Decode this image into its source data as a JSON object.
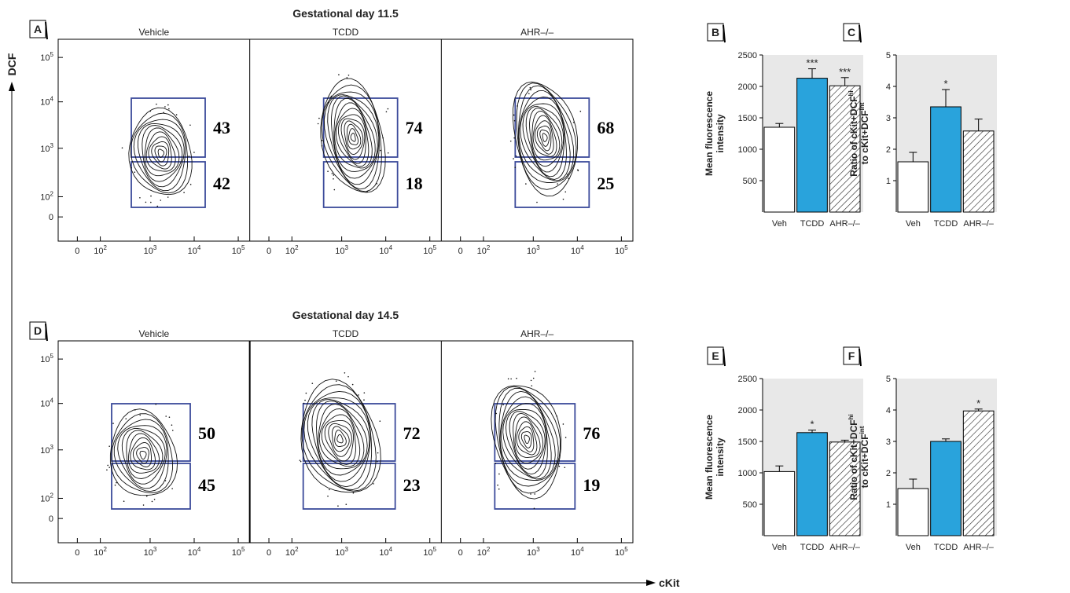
{
  "flow_panels": [
    {
      "label": "A",
      "title": "Gestational day 11.5",
      "conditions": [
        {
          "name": "Vehicle",
          "upper_pct": "43",
          "lower_pct": "42"
        },
        {
          "name": "TCDD",
          "upper_pct": "74",
          "lower_pct": "18"
        },
        {
          "name": "AHR–/–",
          "upper_pct": "68",
          "lower_pct": "25"
        }
      ],
      "y_ticks": [
        "10^5",
        "10^4",
        "10^3",
        "10^2",
        "0"
      ],
      "x_ticks": [
        "0",
        "10^2",
        "10^3",
        "10^4",
        "10^5"
      ]
    },
    {
      "label": "D",
      "title": "Gestational day 14.5",
      "conditions": [
        {
          "name": "Vehicle",
          "upper_pct": "50",
          "lower_pct": "45"
        },
        {
          "name": "TCDD",
          "upper_pct": "72",
          "lower_pct": "23"
        },
        {
          "name": "AHR–/–",
          "upper_pct": "76",
          "lower_pct": "19"
        }
      ],
      "y_ticks": [
        "10^5",
        "10^4",
        "10^3",
        "10^2",
        "0"
      ],
      "x_ticks": [
        "0",
        "10^2",
        "10^3",
        "10^4",
        "10^5"
      ]
    }
  ],
  "axes": {
    "y_label": "DCF",
    "x_label": "cKit"
  },
  "chart_data": [
    {
      "type": "bar",
      "label": "B",
      "categories": [
        "Veh",
        "TCDD",
        "AHR–/–"
      ],
      "values": [
        1350,
        2130,
        2010
      ],
      "errors": [
        60,
        150,
        130
      ],
      "significance": [
        "",
        "***",
        "***"
      ],
      "ylabel": [
        "Mean fluorescence",
        "intensity"
      ],
      "ylim": [
        0,
        2500
      ],
      "yticks": [
        500,
        1000,
        1500,
        2000,
        2500
      ],
      "fills": [
        "white",
        "blue",
        "hatch"
      ]
    },
    {
      "type": "bar",
      "label": "C",
      "categories": [
        "Veh",
        "TCDD",
        "AHR–/–"
      ],
      "values": [
        1.6,
        3.35,
        2.58
      ],
      "errors": [
        0.3,
        0.55,
        0.38
      ],
      "significance": [
        "",
        "*",
        ""
      ],
      "ylabel": [
        "Ratio of cKit+DCF^hi",
        "to cKit+DCF^int"
      ],
      "ylim": [
        0,
        5
      ],
      "yticks": [
        1,
        2,
        3,
        4,
        5
      ],
      "fills": [
        "white",
        "blue",
        "hatch"
      ]
    },
    {
      "type": "bar",
      "label": "E",
      "categories": [
        "Veh",
        "TCDD",
        "AHR–/–"
      ],
      "values": [
        1020,
        1640,
        1490
      ],
      "errors": [
        90,
        40,
        30
      ],
      "significance": [
        "",
        "*",
        ""
      ],
      "ylabel": [
        "Mean fluorescence",
        "intensity"
      ],
      "ylim": [
        0,
        2500
      ],
      "yticks": [
        500,
        1000,
        1500,
        2000,
        2500
      ],
      "fills": [
        "white",
        "blue",
        "hatch"
      ]
    },
    {
      "type": "bar",
      "label": "F",
      "categories": [
        "Veh",
        "TCDD",
        "AHR–/–"
      ],
      "values": [
        1.5,
        3.0,
        3.97
      ],
      "errors": [
        0.3,
        0.08,
        0.06
      ],
      "significance": [
        "",
        "",
        "*"
      ],
      "ylabel": [
        "Ratio of cKit+DCF^hi",
        "to cKit+DCF^int"
      ],
      "ylim": [
        0,
        5
      ],
      "yticks": [
        1,
        2,
        3,
        4,
        5
      ],
      "fills": [
        "white",
        "blue",
        "hatch"
      ]
    }
  ],
  "colors": {
    "tcdd_bar": "#29a3dc",
    "gate_box": "#3b4a9a",
    "panel_bg": "#e8e8e8"
  }
}
